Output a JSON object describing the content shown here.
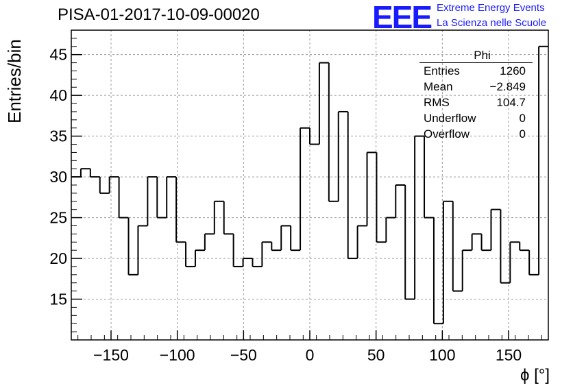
{
  "title": "PISA-01-2017-10-09-00020",
  "logo": {
    "text": "EEE",
    "line1": "Extreme Energy Events",
    "line2": "La Scienza nelle Scuole",
    "color": "#1a1aff"
  },
  "stats": {
    "name": "Phi",
    "rows": [
      {
        "label": "Entries",
        "value": "1260"
      },
      {
        "label": "Mean",
        "value": "−2.849"
      },
      {
        "label": "RMS",
        "value": "104.7"
      },
      {
        "label": "Underflow",
        "value": "0"
      },
      {
        "label": "Overflow",
        "value": "0"
      }
    ]
  },
  "chart_data": {
    "type": "bar",
    "style": "step-histogram",
    "xlabel": "ϕ [°]",
    "ylabel": "Entries/bin",
    "xlim": [
      -180,
      180
    ],
    "ylim": [
      10,
      48
    ],
    "bin_width": 7.2,
    "x_ticks": [
      -150,
      -100,
      -50,
      0,
      50,
      100,
      150
    ],
    "x_tick_labels": [
      "−150",
      "−100",
      "−50",
      "0",
      "50",
      "100",
      "150"
    ],
    "y_ticks": [
      15,
      20,
      25,
      30,
      35,
      40,
      45
    ],
    "y_tick_labels": [
      "15",
      "20",
      "25",
      "30",
      "35",
      "40",
      "45"
    ],
    "grid": true,
    "values": [
      30,
      31,
      30,
      28,
      30,
      25,
      18,
      24,
      30,
      25,
      30,
      22,
      19,
      21,
      23,
      27,
      23,
      19,
      20,
      19,
      22,
      21,
      24,
      21,
      36,
      34,
      44,
      27,
      38,
      20,
      24,
      33,
      22,
      25,
      29,
      15,
      35,
      25,
      12,
      27,
      16,
      21,
      23,
      21,
      26,
      17,
      22,
      21,
      18,
      46
    ]
  }
}
